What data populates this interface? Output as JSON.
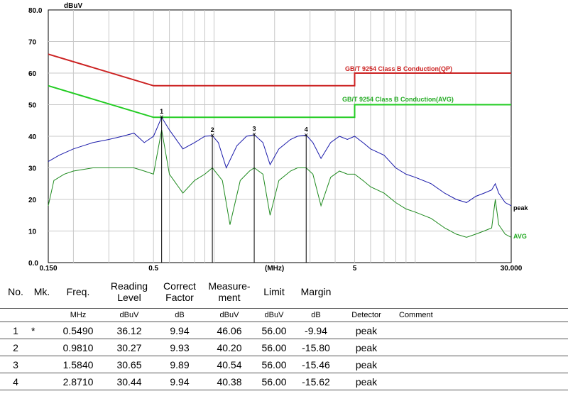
{
  "chart_data": {
    "type": "line",
    "y_unit_label": "dBuV",
    "x_unit_label": "(MHz)",
    "x_scale": "log",
    "xlim": [
      0.15,
      30
    ],
    "ylim": [
      0,
      80
    ],
    "y_ticks": [
      "80.0",
      "70",
      "60",
      "50",
      "40",
      "30",
      "20",
      "10",
      "0.0"
    ],
    "x_ticks": [
      {
        "value": 0.15,
        "label": "0.150"
      },
      {
        "value": 0.5,
        "label": "0.5"
      },
      {
        "value": 5,
        "label": "5"
      },
      {
        "value": 30,
        "label": "30.000"
      }
    ],
    "grid": true,
    "limit_lines": [
      {
        "name": "GB/T 9254 Class B Conduction(QP)",
        "color": "#cc2222",
        "points": [
          [
            0.15,
            66
          ],
          [
            0.5,
            56
          ],
          [
            5,
            56
          ],
          [
            5,
            60
          ],
          [
            30,
            60
          ]
        ]
      },
      {
        "name": "GB/T 9254 Class B Conduction(AVG)",
        "color": "#22cc22",
        "points": [
          [
            0.15,
            56
          ],
          [
            0.5,
            46
          ],
          [
            5,
            46
          ],
          [
            5,
            50
          ],
          [
            30,
            50
          ]
        ]
      }
    ],
    "series": [
      {
        "name": "peak",
        "color": "#1a1aaa",
        "points": [
          [
            0.15,
            32
          ],
          [
            0.17,
            34
          ],
          [
            0.2,
            36
          ],
          [
            0.25,
            38
          ],
          [
            0.3,
            39
          ],
          [
            0.35,
            40
          ],
          [
            0.4,
            41
          ],
          [
            0.45,
            38
          ],
          [
            0.5,
            40
          ],
          [
            0.549,
            46
          ],
          [
            0.6,
            42
          ],
          [
            0.7,
            36
          ],
          [
            0.8,
            38
          ],
          [
            0.9,
            40
          ],
          [
            0.981,
            40.2
          ],
          [
            1.05,
            38
          ],
          [
            1.15,
            30
          ],
          [
            1.3,
            37
          ],
          [
            1.45,
            40
          ],
          [
            1.584,
            40.5
          ],
          [
            1.75,
            38
          ],
          [
            1.9,
            31
          ],
          [
            2.1,
            36
          ],
          [
            2.4,
            39
          ],
          [
            2.6,
            40
          ],
          [
            2.871,
            40.4
          ],
          [
            3.1,
            38
          ],
          [
            3.4,
            33
          ],
          [
            3.8,
            38
          ],
          [
            4.2,
            40
          ],
          [
            4.6,
            39
          ],
          [
            5,
            40
          ],
          [
            5.5,
            38
          ],
          [
            6,
            36
          ],
          [
            7,
            34
          ],
          [
            8,
            30
          ],
          [
            9,
            28
          ],
          [
            10,
            27
          ],
          [
            12,
            25
          ],
          [
            14,
            22
          ],
          [
            16,
            20
          ],
          [
            18,
            19
          ],
          [
            20,
            21
          ],
          [
            22,
            22
          ],
          [
            24,
            23
          ],
          [
            25,
            25
          ],
          [
            26,
            22
          ],
          [
            28,
            19
          ],
          [
            30,
            18
          ]
        ]
      },
      {
        "name": "AVG",
        "color": "#1e8a1e",
        "points": [
          [
            0.15,
            18
          ],
          [
            0.16,
            26
          ],
          [
            0.18,
            28
          ],
          [
            0.2,
            29
          ],
          [
            0.25,
            30
          ],
          [
            0.3,
            30
          ],
          [
            0.35,
            30
          ],
          [
            0.4,
            30
          ],
          [
            0.45,
            29
          ],
          [
            0.5,
            28
          ],
          [
            0.549,
            42
          ],
          [
            0.6,
            28
          ],
          [
            0.7,
            22
          ],
          [
            0.8,
            26
          ],
          [
            0.9,
            28
          ],
          [
            0.981,
            30
          ],
          [
            1.1,
            26
          ],
          [
            1.2,
            12
          ],
          [
            1.35,
            26
          ],
          [
            1.5,
            29
          ],
          [
            1.584,
            30
          ],
          [
            1.75,
            28
          ],
          [
            1.9,
            15
          ],
          [
            2.1,
            26
          ],
          [
            2.4,
            29
          ],
          [
            2.6,
            30
          ],
          [
            2.871,
            30
          ],
          [
            3.1,
            28
          ],
          [
            3.4,
            18
          ],
          [
            3.8,
            27
          ],
          [
            4.2,
            29
          ],
          [
            4.6,
            28
          ],
          [
            5,
            28
          ],
          [
            5.5,
            26
          ],
          [
            6,
            24
          ],
          [
            7,
            22
          ],
          [
            8,
            19
          ],
          [
            9,
            17
          ],
          [
            10,
            16
          ],
          [
            12,
            14
          ],
          [
            14,
            11
          ],
          [
            16,
            9
          ],
          [
            18,
            8
          ],
          [
            20,
            9
          ],
          [
            22,
            10
          ],
          [
            24,
            11
          ],
          [
            25,
            20
          ],
          [
            26,
            12
          ],
          [
            28,
            9
          ],
          [
            30,
            8
          ]
        ]
      }
    ],
    "markers": [
      {
        "label": "1",
        "freq": 0.549,
        "level": 46.06
      },
      {
        "label": "2",
        "freq": 0.981,
        "level": 40.2
      },
      {
        "label": "3",
        "freq": 1.584,
        "level": 40.54
      },
      {
        "label": "4",
        "freq": 2.871,
        "level": 40.38
      }
    ]
  },
  "table": {
    "headers": {
      "no": "No.",
      "mk": "Mk.",
      "freq": "Freq.",
      "reading_1": "Reading",
      "reading_2": "Level",
      "correct_1": "Correct",
      "correct_2": "Factor",
      "measure_1": "Measure-",
      "measure_2": "ment",
      "limit": "Limit",
      "margin": "Margin"
    },
    "units": {
      "freq": "MHz",
      "reading": "dBuV",
      "correct": "dB",
      "measure": "dBuV",
      "limit": "dBuV",
      "margin": "dB",
      "detector": "Detector",
      "comment": "Comment"
    },
    "rows": [
      {
        "no": "1",
        "mk": "*",
        "freq": "0.5490",
        "reading": "36.12",
        "correct": "9.94",
        "measure": "46.06",
        "limit": "56.00",
        "margin": "-9.94",
        "detector": "peak"
      },
      {
        "no": "2",
        "mk": "",
        "freq": "0.9810",
        "reading": "30.27",
        "correct": "9.93",
        "measure": "40.20",
        "limit": "56.00",
        "margin": "-15.80",
        "detector": "peak"
      },
      {
        "no": "3",
        "mk": "",
        "freq": "1.5840",
        "reading": "30.65",
        "correct": "9.89",
        "measure": "40.54",
        "limit": "56.00",
        "margin": "-15.46",
        "detector": "peak"
      },
      {
        "no": "4",
        "mk": "",
        "freq": "2.8710",
        "reading": "30.44",
        "correct": "9.94",
        "measure": "40.38",
        "limit": "56.00",
        "margin": "-15.62",
        "detector": "peak"
      }
    ]
  }
}
